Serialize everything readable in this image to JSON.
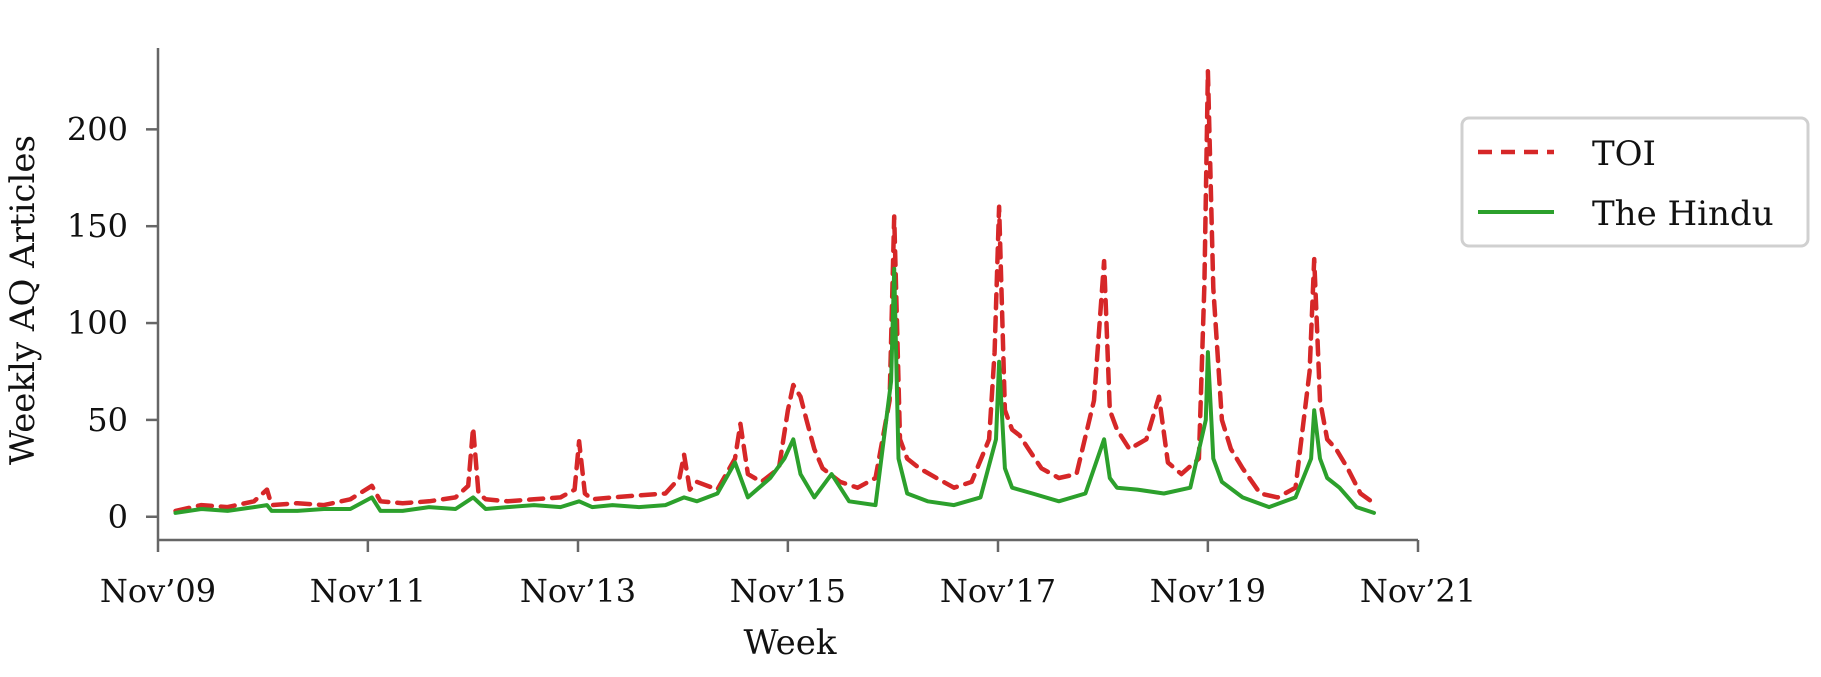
{
  "chart_data": {
    "type": "line",
    "xlabel": "Week",
    "ylabel": "Weekly AQ Articles",
    "xlim": [
      "2009-11-01",
      "2021-11-01"
    ],
    "ylim": [
      -12,
      242
    ],
    "x_ticks": [
      {
        "date": "2009-11-01",
        "label": "Nov’09"
      },
      {
        "date": "2011-11-01",
        "label": "Nov’11"
      },
      {
        "date": "2013-11-01",
        "label": "Nov’13"
      },
      {
        "date": "2015-11-01",
        "label": "Nov’15"
      },
      {
        "date": "2017-11-01",
        "label": "Nov’17"
      },
      {
        "date": "2019-11-01",
        "label": "Nov’19"
      },
      {
        "date": "2021-11-01",
        "label": "Nov’21"
      }
    ],
    "y_ticks": [
      0,
      50,
      100,
      150,
      200
    ],
    "grid": false,
    "legend_position": "right",
    "series": [
      {
        "name": "TOI",
        "color": "#d62728",
        "dash": "dashed",
        "points": [
          [
            "2010-01-01",
            3
          ],
          [
            "2010-04-01",
            6
          ],
          [
            "2010-07-01",
            5
          ],
          [
            "2010-10-01",
            8
          ],
          [
            "2010-11-15",
            14
          ],
          [
            "2010-12-01",
            6
          ],
          [
            "2011-03-01",
            7
          ],
          [
            "2011-06-01",
            6
          ],
          [
            "2011-09-01",
            9
          ],
          [
            "2011-11-15",
            16
          ],
          [
            "2011-12-15",
            8
          ],
          [
            "2012-03-01",
            7
          ],
          [
            "2012-06-01",
            8
          ],
          [
            "2012-09-01",
            10
          ],
          [
            "2012-10-15",
            16
          ],
          [
            "2012-11-01",
            46
          ],
          [
            "2012-11-20",
            12
          ],
          [
            "2012-12-15",
            9
          ],
          [
            "2013-03-01",
            8
          ],
          [
            "2013-06-01",
            9
          ],
          [
            "2013-09-01",
            10
          ],
          [
            "2013-10-20",
            14
          ],
          [
            "2013-11-05",
            39
          ],
          [
            "2013-11-25",
            12
          ],
          [
            "2013-12-20",
            9
          ],
          [
            "2014-03-01",
            10
          ],
          [
            "2014-06-01",
            11
          ],
          [
            "2014-09-01",
            12
          ],
          [
            "2014-10-20",
            20
          ],
          [
            "2014-11-05",
            32
          ],
          [
            "2014-11-25",
            14
          ],
          [
            "2014-12-20",
            18
          ],
          [
            "2015-03-01",
            14
          ],
          [
            "2015-05-01",
            30
          ],
          [
            "2015-05-20",
            48
          ],
          [
            "2015-06-15",
            22
          ],
          [
            "2015-08-01",
            18
          ],
          [
            "2015-10-01",
            25
          ],
          [
            "2015-11-01",
            55
          ],
          [
            "2015-11-20",
            68
          ],
          [
            "2015-12-15",
            62
          ],
          [
            "2016-01-05",
            50
          ],
          [
            "2016-02-01",
            35
          ],
          [
            "2016-03-01",
            25
          ],
          [
            "2016-05-01",
            18
          ],
          [
            "2016-07-01",
            15
          ],
          [
            "2016-09-01",
            20
          ],
          [
            "2016-10-20",
            60
          ],
          [
            "2016-11-05",
            155
          ],
          [
            "2016-11-25",
            40
          ],
          [
            "2016-12-20",
            30
          ],
          [
            "2017-02-01",
            25
          ],
          [
            "2017-04-01",
            20
          ],
          [
            "2017-06-01",
            15
          ],
          [
            "2017-08-01",
            18
          ],
          [
            "2017-10-01",
            40
          ],
          [
            "2017-10-20",
            85
          ],
          [
            "2017-11-05",
            160
          ],
          [
            "2017-11-25",
            55
          ],
          [
            "2017-12-20",
            45
          ],
          [
            "2018-01-15",
            42
          ],
          [
            "2018-02-15",
            35
          ],
          [
            "2018-04-01",
            25
          ],
          [
            "2018-06-01",
            20
          ],
          [
            "2018-08-01",
            22
          ],
          [
            "2018-10-01",
            60
          ],
          [
            "2018-11-05",
            132
          ],
          [
            "2018-11-25",
            55
          ],
          [
            "2018-12-20",
            45
          ],
          [
            "2019-02-01",
            35
          ],
          [
            "2019-04-01",
            40
          ],
          [
            "2019-05-15",
            62
          ],
          [
            "2019-06-15",
            28
          ],
          [
            "2019-08-01",
            22
          ],
          [
            "2019-10-01",
            30
          ],
          [
            "2019-10-20",
            120
          ],
          [
            "2019-11-01",
            230
          ],
          [
            "2019-11-20",
            118
          ],
          [
            "2019-12-20",
            50
          ],
          [
            "2020-01-20",
            35
          ],
          [
            "2020-03-01",
            25
          ],
          [
            "2020-05-01",
            12
          ],
          [
            "2020-07-01",
            10
          ],
          [
            "2020-09-01",
            15
          ],
          [
            "2020-10-20",
            75
          ],
          [
            "2020-11-05",
            133
          ],
          [
            "2020-11-25",
            60
          ],
          [
            "2020-12-20",
            40
          ],
          [
            "2021-01-20",
            35
          ],
          [
            "2021-03-01",
            25
          ],
          [
            "2021-04-15",
            12
          ],
          [
            "2021-06-01",
            7
          ]
        ]
      },
      {
        "name": "The Hindu",
        "color": "#2ca02c",
        "dash": "solid",
        "points": [
          [
            "2010-01-01",
            2
          ],
          [
            "2010-04-01",
            4
          ],
          [
            "2010-07-01",
            3
          ],
          [
            "2010-10-01",
            5
          ],
          [
            "2010-11-15",
            6
          ],
          [
            "2010-12-01",
            3
          ],
          [
            "2011-03-01",
            3
          ],
          [
            "2011-06-01",
            4
          ],
          [
            "2011-09-01",
            4
          ],
          [
            "2011-11-15",
            10
          ],
          [
            "2011-12-15",
            3
          ],
          [
            "2012-03-01",
            3
          ],
          [
            "2012-06-01",
            5
          ],
          [
            "2012-09-01",
            4
          ],
          [
            "2012-11-01",
            10
          ],
          [
            "2012-12-15",
            4
          ],
          [
            "2013-03-01",
            5
          ],
          [
            "2013-06-01",
            6
          ],
          [
            "2013-09-01",
            5
          ],
          [
            "2013-11-05",
            8
          ],
          [
            "2013-12-20",
            5
          ],
          [
            "2014-03-01",
            6
          ],
          [
            "2014-06-01",
            5
          ],
          [
            "2014-09-01",
            6
          ],
          [
            "2014-11-05",
            10
          ],
          [
            "2014-12-20",
            8
          ],
          [
            "2015-03-01",
            12
          ],
          [
            "2015-05-01",
            28
          ],
          [
            "2015-06-15",
            10
          ],
          [
            "2015-09-01",
            20
          ],
          [
            "2015-10-20",
            30
          ],
          [
            "2015-11-20",
            40
          ],
          [
            "2015-12-15",
            22
          ],
          [
            "2016-02-01",
            10
          ],
          [
            "2016-04-01",
            22
          ],
          [
            "2016-06-01",
            8
          ],
          [
            "2016-09-01",
            6
          ],
          [
            "2016-10-25",
            70
          ],
          [
            "2016-11-05",
            128
          ],
          [
            "2016-11-20",
            30
          ],
          [
            "2016-12-20",
            12
          ],
          [
            "2017-03-01",
            8
          ],
          [
            "2017-06-01",
            6
          ],
          [
            "2017-09-01",
            10
          ],
          [
            "2017-10-25",
            40
          ],
          [
            "2017-11-05",
            80
          ],
          [
            "2017-11-25",
            25
          ],
          [
            "2017-12-20",
            15
          ],
          [
            "2018-03-01",
            12
          ],
          [
            "2018-06-01",
            8
          ],
          [
            "2018-09-01",
            12
          ],
          [
            "2018-11-05",
            40
          ],
          [
            "2018-11-25",
            20
          ],
          [
            "2018-12-20",
            15
          ],
          [
            "2019-03-01",
            14
          ],
          [
            "2019-06-01",
            12
          ],
          [
            "2019-09-01",
            15
          ],
          [
            "2019-10-25",
            50
          ],
          [
            "2019-11-01",
            85
          ],
          [
            "2019-11-20",
            30
          ],
          [
            "2019-12-20",
            18
          ],
          [
            "2020-03-01",
            10
          ],
          [
            "2020-06-01",
            5
          ],
          [
            "2020-09-01",
            10
          ],
          [
            "2020-10-25",
            30
          ],
          [
            "2020-11-05",
            55
          ],
          [
            "2020-11-25",
            30
          ],
          [
            "2020-12-20",
            20
          ],
          [
            "2021-02-01",
            15
          ],
          [
            "2021-04-01",
            5
          ],
          [
            "2021-06-01",
            2
          ]
        ]
      }
    ]
  }
}
